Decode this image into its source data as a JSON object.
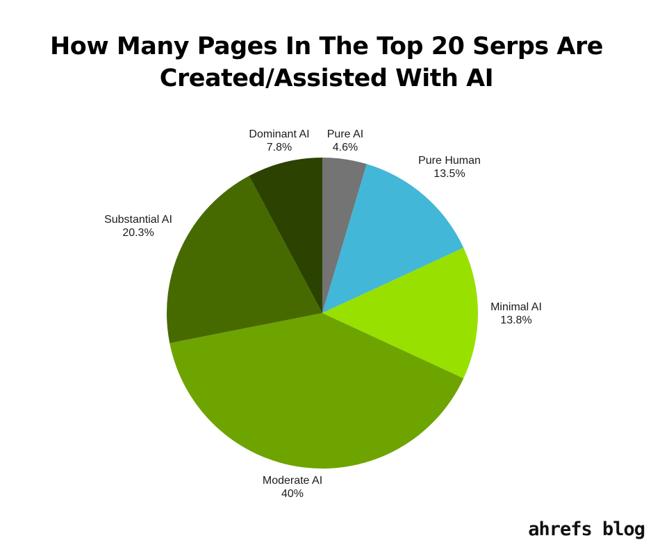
{
  "chart_data": {
    "type": "pie",
    "title_lines": [
      "How Many Pages In The Top 20 Serps Are",
      "Created/Assisted With AI"
    ],
    "start_angle": "top (12 o'clock), clockwise",
    "slices": [
      {
        "label": "Pure AI",
        "value": 4.6,
        "display": "4.6%",
        "color": "#747474"
      },
      {
        "label": "Pure Human",
        "value": 13.5,
        "display": "13.5%",
        "color": "#42b7d8"
      },
      {
        "label": "Minimal AI",
        "value": 13.8,
        "display": "13.8%",
        "color": "#98e000"
      },
      {
        "label": "Moderate AI",
        "value": 40,
        "display": "40%",
        "color": "#6ea400"
      },
      {
        "label": "Substantial AI",
        "value": 20.3,
        "display": "20.3%",
        "color": "#476a00"
      },
      {
        "label": "Dominant AI",
        "value": 7.8,
        "display": "7.8%",
        "color": "#2b4200"
      }
    ]
  },
  "branding": {
    "logo_text": "ahrefs blog"
  }
}
